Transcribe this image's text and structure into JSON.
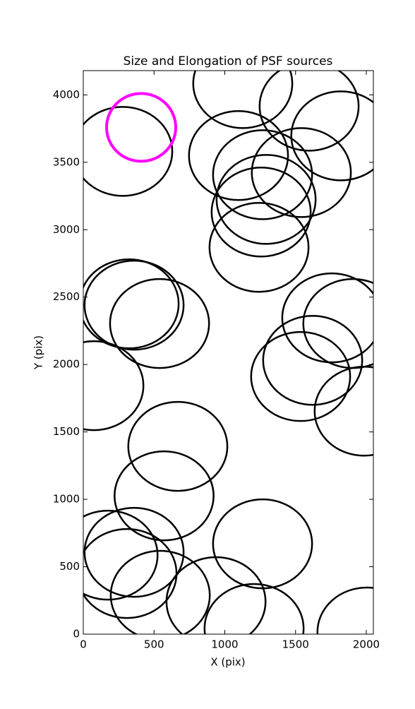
{
  "chart_data": {
    "type": "ellipse",
    "title": "Size and Elongation of PSF sources",
    "xlabel": "X (pix)",
    "ylabel": "Y (pix)",
    "xlim": [
      0,
      2050
    ],
    "ylim": [
      0,
      4180
    ],
    "xticks": [
      0,
      500,
      1000,
      1500,
      2000
    ],
    "yticks": [
      0,
      500,
      1000,
      1500,
      2000,
      2500,
      3000,
      3500,
      4000
    ],
    "series": [
      {
        "color": "#000000",
        "width": 700,
        "height": 660,
        "x": [
          279,
          1127,
          1596,
          1820,
          1097,
          1267,
          1541,
          1292,
          1257,
          1242,
          324,
          359,
          539,
          1756,
          1905,
          1621,
          1536,
          75,
          1985,
          668,
          571,
          1267,
          175,
          359,
          309,
          544,
          938,
          1207,
          2005
        ],
        "y": [
          3581,
          4084,
          3916,
          3696,
          3550,
          3408,
          3424,
          3225,
          3131,
          2869,
          2450,
          2440,
          2304,
          2346,
          2304,
          2031,
          1911,
          1843,
          1654,
          1393,
          1026,
          670,
          586,
          607,
          450,
          288,
          241,
          42,
          16
        ]
      },
      {
        "color": "#ff00ff",
        "width": 489,
        "height": 503,
        "x": [
          409
        ],
        "y": [
          3759
        ]
      }
    ]
  }
}
